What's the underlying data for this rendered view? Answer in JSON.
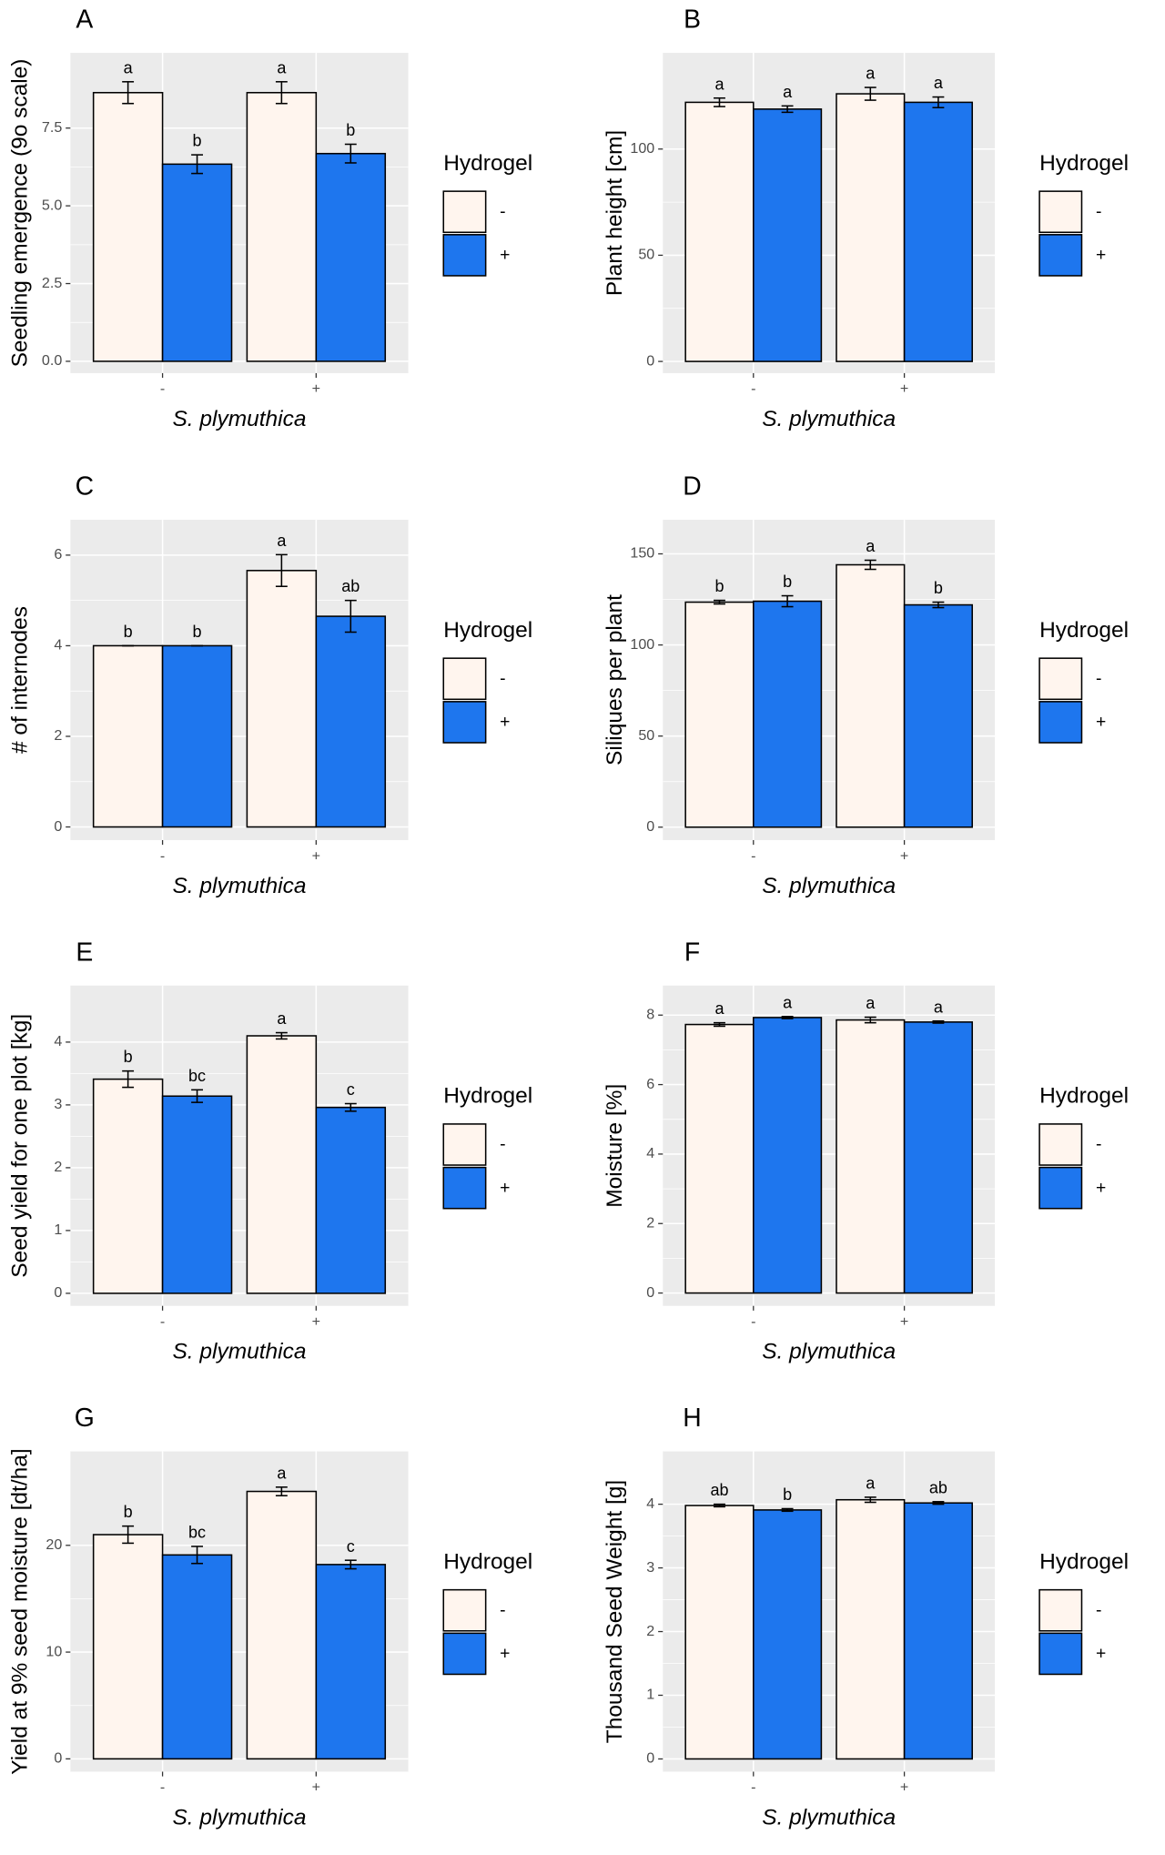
{
  "chart_data": [
    {
      "type": "bar",
      "panel": "A",
      "y_label": "Seedling emergence (9o scale)",
      "x_label": "S. plymuthica",
      "legend_title": "Hydrogel",
      "categories": [
        "-",
        "+"
      ],
      "ylim": [
        -0.38,
        9.92
      ],
      "yticks": [
        {
          "value": 0,
          "label": "0.0"
        },
        2.5,
        {
          "value": 5,
          "label": "5.0"
        },
        7.5
      ],
      "series": [
        {
          "name": "-",
          "color": "#FFF5EE",
          "values": [
            8.64,
            8.64
          ],
          "errors": [
            0.35,
            0.35
          ],
          "letters": [
            "a",
            "a"
          ]
        },
        {
          "name": "+",
          "color": "#1E76EE",
          "values": [
            6.34,
            6.68
          ],
          "errors": [
            0.3,
            0.3
          ],
          "letters": [
            "b",
            "b"
          ]
        }
      ]
    },
    {
      "type": "bar",
      "panel": "B",
      "y_label": "Plant height [cm]",
      "x_label": "S. plymuthica",
      "legend_title": "Hydrogel",
      "categories": [
        "-",
        "+"
      ],
      "ylim": [
        -5.5,
        145.3
      ],
      "yticks": [
        0,
        50,
        100
      ],
      "series": [
        {
          "name": "-",
          "color": "#FFF5EE",
          "values": [
            122,
            126
          ],
          "errors": [
            2,
            3
          ],
          "letters": [
            "a",
            "a"
          ]
        },
        {
          "name": "+",
          "color": "#1E76EE",
          "values": [
            118.8,
            122
          ],
          "errors": [
            1.5,
            2.5
          ],
          "letters": [
            "a",
            "a"
          ]
        }
      ]
    },
    {
      "type": "bar",
      "panel": "C",
      "y_label": "# of internodes",
      "x_label": "S. plymuthica",
      "legend_title": "Hydrogel",
      "categories": [
        "-",
        "+"
      ],
      "ylim": [
        -0.29,
        6.78
      ],
      "yticks": [
        0,
        2,
        4,
        6
      ],
      "series": [
        {
          "name": "-",
          "color": "#FFF5EE",
          "values": [
            4,
            5.66
          ],
          "errors": [
            0,
            0.35
          ],
          "letters": [
            "b",
            "a"
          ]
        },
        {
          "name": "+",
          "color": "#1E76EE",
          "values": [
            4,
            4.65
          ],
          "errors": [
            0,
            0.35
          ],
          "letters": [
            "b",
            "ab"
          ]
        }
      ]
    },
    {
      "type": "bar",
      "panel": "D",
      "y_label": "Siliques per plant",
      "x_label": "S. plymuthica",
      "legend_title": "Hydrogel",
      "categories": [
        "-",
        "+"
      ],
      "ylim": [
        -7.1,
        168.7
      ],
      "yticks": [
        0,
        50,
        100,
        150
      ],
      "series": [
        {
          "name": "-",
          "color": "#FFF5EE",
          "values": [
            123.5,
            144
          ],
          "errors": [
            1,
            2.5
          ],
          "letters": [
            "b",
            "a"
          ]
        },
        {
          "name": "+",
          "color": "#1E76EE",
          "values": [
            124,
            122
          ],
          "errors": [
            3,
            1.5
          ],
          "letters": [
            "b",
            "b"
          ]
        }
      ]
    },
    {
      "type": "bar",
      "panel": "E",
      "y_label": "Seed yield for one plot [kg]",
      "x_label": "S. plymuthica",
      "legend_title": "Hydrogel",
      "categories": [
        "-",
        "+"
      ],
      "ylim": [
        -0.2,
        4.9
      ],
      "yticks": [
        0,
        1,
        2,
        3,
        4
      ],
      "series": [
        {
          "name": "-",
          "color": "#FFF5EE",
          "values": [
            3.41,
            4.1
          ],
          "errors": [
            0.13,
            0.05
          ],
          "letters": [
            "b",
            "a"
          ]
        },
        {
          "name": "+",
          "color": "#1E76EE",
          "values": [
            3.14,
            2.96
          ],
          "errors": [
            0.1,
            0.06
          ],
          "letters": [
            "bc",
            "c"
          ]
        }
      ]
    },
    {
      "type": "bar",
      "panel": "F",
      "y_label": "Moisture [%]",
      "x_label": "S. plymuthica",
      "legend_title": "Hydrogel",
      "categories": [
        "-",
        "+"
      ],
      "ylim": [
        -0.37,
        8.85
      ],
      "yticks": [
        0,
        2,
        4,
        6,
        8
      ],
      "series": [
        {
          "name": "-",
          "color": "#FFF5EE",
          "values": [
            7.73,
            7.86
          ],
          "errors": [
            0.05,
            0.08
          ],
          "letters": [
            "a",
            "a"
          ]
        },
        {
          "name": "+",
          "color": "#1E76EE",
          "values": [
            7.93,
            7.8
          ],
          "errors": [
            0.03,
            0.03
          ],
          "letters": [
            "a",
            "a"
          ]
        }
      ]
    },
    {
      "type": "bar",
      "panel": "G",
      "y_label": "Yield at 9% seed moisture [dt/ha]",
      "x_label": "S. plymuthica",
      "legend_title": "Hydrogel",
      "categories": [
        "-",
        "+"
      ],
      "ylim": [
        -1.2,
        28.8
      ],
      "yticks": [
        0,
        10,
        20
      ],
      "series": [
        {
          "name": "-",
          "color": "#FFF5EE",
          "values": [
            21.0,
            25.05
          ],
          "errors": [
            0.8,
            0.4
          ],
          "letters": [
            "b",
            "a"
          ]
        },
        {
          "name": "+",
          "color": "#1E76EE",
          "values": [
            19.1,
            18.2
          ],
          "errors": [
            0.8,
            0.4
          ],
          "letters": [
            "bc",
            "c"
          ]
        }
      ]
    },
    {
      "type": "bar",
      "panel": "H",
      "y_label": "Thousand Seed Weight [g]",
      "x_label": "S. plymuthica",
      "legend_title": "Hydrogel",
      "categories": [
        "-",
        "+"
      ],
      "ylim": [
        -0.2,
        4.83
      ],
      "yticks": [
        0,
        1,
        2,
        3,
        4
      ],
      "series": [
        {
          "name": "-",
          "color": "#FFF5EE",
          "values": [
            3.98,
            4.07
          ],
          "errors": [
            0.02,
            0.04
          ],
          "letters": [
            "ab",
            "a"
          ]
        },
        {
          "name": "+",
          "color": "#1E76EE",
          "values": [
            3.91,
            4.02
          ],
          "errors": [
            0.02,
            0.02
          ],
          "letters": [
            "b",
            "ab"
          ]
        }
      ]
    }
  ]
}
